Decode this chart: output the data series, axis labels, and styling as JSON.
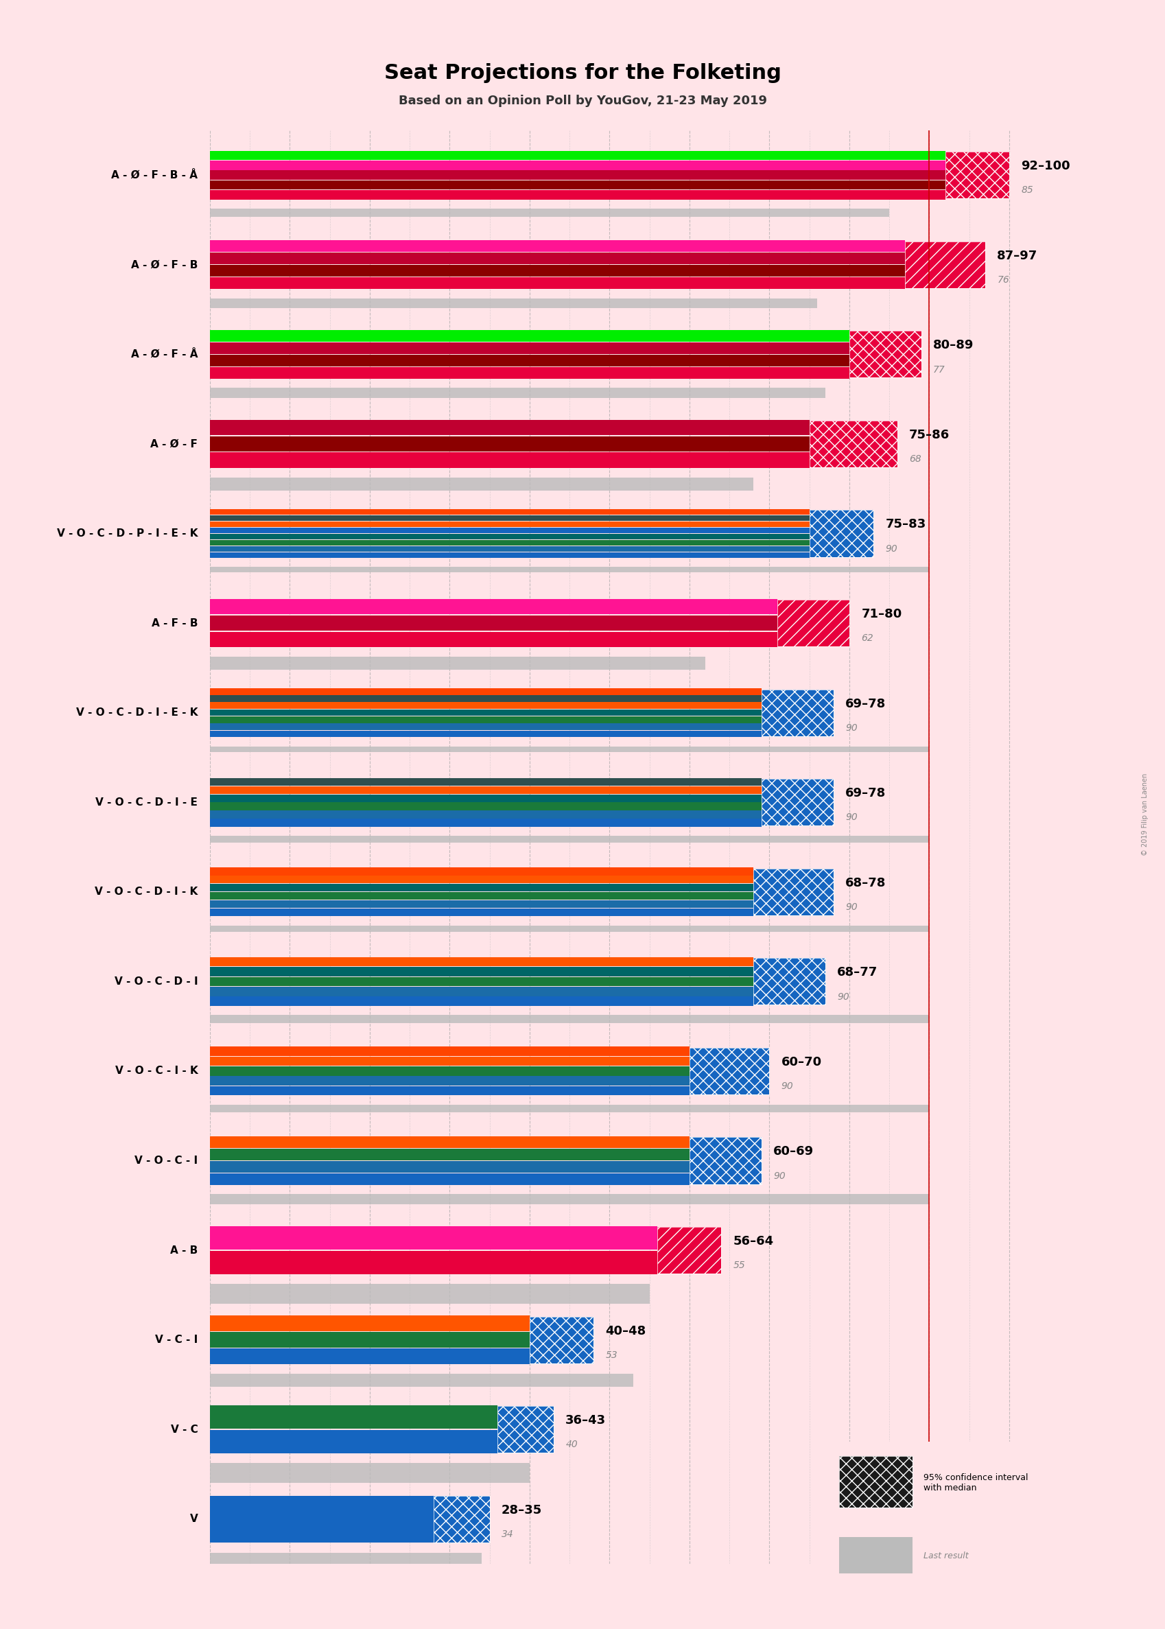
{
  "title": "Seat Projections for the Folketing",
  "subtitle": "Based on an Opinion Poll by YouGov, 21-23 May 2019",
  "background_color": "#FFE4E8",
  "coalitions": [
    {
      "label": "A - Ø - F - B - Å",
      "ci_low": 92,
      "ci_high": 100,
      "last_result": 85,
      "parties": [
        "A",
        "Ø",
        "F",
        "B",
        "Å"
      ],
      "colors": [
        "#E8003D",
        "#8B0000",
        "#E8003D",
        "#FF1493",
        "#00DD00"
      ],
      "underline": false
    },
    {
      "label": "A - Ø - F - B",
      "ci_low": 87,
      "ci_high": 97,
      "last_result": 76,
      "parties": [
        "A",
        "Ø",
        "F",
        "B"
      ],
      "colors": [
        "#E8003D",
        "#8B0000",
        "#E8003D",
        "#FF1493"
      ],
      "underline": false
    },
    {
      "label": "A - Ø - F - Å",
      "ci_low": 80,
      "ci_high": 89,
      "last_result": 77,
      "parties": [
        "A",
        "Ø",
        "F",
        "Å"
      ],
      "colors": [
        "#E8003D",
        "#8B0000",
        "#E8003D",
        "#00DD00"
      ],
      "underline": false
    },
    {
      "label": "A - Ø - F",
      "ci_low": 75,
      "ci_high": 86,
      "last_result": 68,
      "parties": [
        "A",
        "Ø",
        "F"
      ],
      "colors": [
        "#E8003D",
        "#8B0000",
        "#E8003D"
      ],
      "underline": false
    },
    {
      "label": "V - O - C - D - P - I - E - K",
      "ci_low": 75,
      "ci_high": 83,
      "last_result": 90,
      "parties": [
        "V",
        "O",
        "C",
        "D",
        "P",
        "I",
        "E",
        "K"
      ],
      "colors": [
        "#1A6FA8",
        "#1A6FA8",
        "#228B22",
        "#008080",
        "#1A6FA8",
        "#FF6600",
        "#4A4A4A",
        "#FF6600"
      ],
      "underline": false
    },
    {
      "label": "A - F - B",
      "ci_low": 71,
      "ci_high": 80,
      "last_result": 62,
      "parties": [
        "A",
        "F",
        "B"
      ],
      "colors": [
        "#E8003D",
        "#8B0000",
        "#FF1493"
      ],
      "underline": false
    },
    {
      "label": "V - O - C - D - I - E - K",
      "ci_low": 69,
      "ci_high": 78,
      "last_result": 90,
      "parties": [
        "V",
        "O",
        "C",
        "D",
        "I",
        "E",
        "K"
      ],
      "colors": [
        "#1A6FA8",
        "#1A6FA8",
        "#228B22",
        "#008080",
        "#FF6600",
        "#4A4A4A",
        "#FF6600"
      ],
      "underline": false
    },
    {
      "label": "V - O - C - D - I - E",
      "ci_low": 69,
      "ci_high": 78,
      "last_result": 90,
      "parties": [
        "V",
        "O",
        "C",
        "D",
        "I",
        "E"
      ],
      "colors": [
        "#1A6FA8",
        "#1A6FA8",
        "#228B22",
        "#008080",
        "#FF6600",
        "#4A4A4A"
      ],
      "underline": false
    },
    {
      "label": "V - O - C - D - I - K",
      "ci_low": 68,
      "ci_high": 78,
      "last_result": 90,
      "parties": [
        "V",
        "O",
        "C",
        "D",
        "I",
        "K"
      ],
      "colors": [
        "#1A6FA8",
        "#1A6FA8",
        "#228B22",
        "#008080",
        "#FF6600",
        "#FF6600"
      ],
      "underline": false
    },
    {
      "label": "V - O - C - D - I",
      "ci_low": 68,
      "ci_high": 77,
      "last_result": 90,
      "parties": [
        "V",
        "O",
        "C",
        "D",
        "I"
      ],
      "colors": [
        "#1A6FA8",
        "#1A6FA8",
        "#228B22",
        "#008080",
        "#FF6600"
      ],
      "underline": false
    },
    {
      "label": "V - O - C - I - K",
      "ci_low": 60,
      "ci_high": 70,
      "last_result": 90,
      "parties": [
        "V",
        "O",
        "C",
        "I",
        "K"
      ],
      "colors": [
        "#1A6FA8",
        "#1A6FA8",
        "#228B22",
        "#FF6600",
        "#FF6600"
      ],
      "underline": false
    },
    {
      "label": "V - O - C - I",
      "ci_low": 60,
      "ci_high": 69,
      "last_result": 90,
      "parties": [
        "V",
        "O",
        "C",
        "I"
      ],
      "colors": [
        "#1A6FA8",
        "#1A6FA8",
        "#228B22",
        "#FF6600"
      ],
      "underline": true
    },
    {
      "label": "A - B",
      "ci_low": 56,
      "ci_high": 64,
      "last_result": 55,
      "parties": [
        "A",
        "B"
      ],
      "colors": [
        "#E8003D",
        "#FF1493"
      ],
      "underline": false
    },
    {
      "label": "V - C - I",
      "ci_low": 40,
      "ci_high": 48,
      "last_result": 53,
      "parties": [
        "V",
        "C",
        "I"
      ],
      "colors": [
        "#1A6FA8",
        "#228B22",
        "#FF6600"
      ],
      "underline": true
    },
    {
      "label": "V - C",
      "ci_low": 36,
      "ci_high": 43,
      "last_result": 40,
      "parties": [
        "V",
        "C"
      ],
      "colors": [
        "#1A6FA8",
        "#228B22"
      ],
      "underline": false
    },
    {
      "label": "V",
      "ci_low": 28,
      "ci_high": 35,
      "last_result": 34,
      "parties": [
        "V"
      ],
      "colors": [
        "#1A6FA8"
      ],
      "underline": false
    }
  ],
  "party_colors": {
    "A": "#E8003D",
    "Ø": "#8B0000",
    "F": "#E8003D",
    "B": "#FF1493",
    "Å": "#00DD00",
    "V": "#1A6FA8",
    "O": "#1E6B9A",
    "C": "#228B22",
    "D": "#008080",
    "P": "#1A6FA8",
    "I": "#FF6600",
    "E": "#2F4F4F",
    "K": "#FF4500"
  },
  "majority_line": 90,
  "x_min": 0,
  "x_max": 100
}
